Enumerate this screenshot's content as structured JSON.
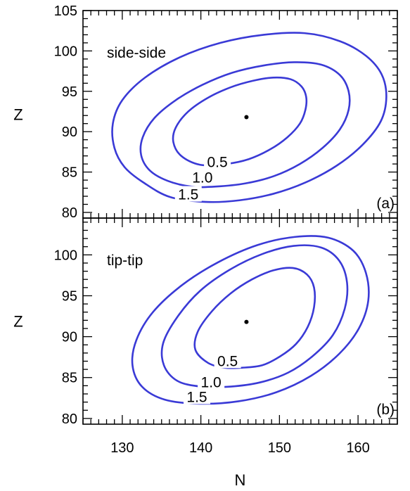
{
  "chart_data": {
    "type": "contour",
    "shared_xaxis": {
      "label": "N",
      "xlim": [
        125,
        165
      ],
      "ticks": [
        130,
        140,
        150,
        160
      ],
      "tick_labels": [
        "130",
        "140",
        "150",
        "160"
      ]
    },
    "panels": [
      {
        "id": "a",
        "annotation": "side-side",
        "panel_label": "(a)",
        "ylabel": "Z",
        "ylim": [
          79.3,
          105
        ],
        "yticks": [
          80,
          85,
          90,
          95,
          100,
          105
        ],
        "ytick_labels": [
          "80",
          "85",
          "90",
          "95",
          "100",
          "105"
        ],
        "center": {
          "x": 145.8,
          "y": 91.8
        },
        "contours": [
          {
            "level": "0.5",
            "label": "0.5",
            "label_at": {
              "x": 142.1,
              "y": 86.3
            },
            "points": [
              [
                139.9,
                85.9
              ],
              [
                143.2,
                86.0
              ],
              [
                146.1,
                86.6
              ],
              [
                148.8,
                87.8
              ],
              [
                151.0,
                89.3
              ],
              [
                152.6,
                91.0
              ],
              [
                153.3,
                92.7
              ],
              [
                153.4,
                94.3
              ],
              [
                152.8,
                95.6
              ],
              [
                151.4,
                96.5
              ],
              [
                149.2,
                96.7
              ],
              [
                146.6,
                96.3
              ],
              [
                143.8,
                95.5
              ],
              [
                140.9,
                94.2
              ],
              [
                138.4,
                92.5
              ],
              [
                136.8,
                90.5
              ],
              [
                136.5,
                88.7
              ],
              [
                137.5,
                87.0
              ],
              [
                139.9,
                85.9
              ]
            ]
          },
          {
            "level": "1.0",
            "label": "1.0",
            "label_at": {
              "x": 140.2,
              "y": 84.4
            },
            "points": [
              [
                141.9,
                83.2
              ],
              [
                145.7,
                83.6
              ],
              [
                149.3,
                84.5
              ],
              [
                152.6,
                86.0
              ],
              [
                155.5,
                88.0
              ],
              [
                157.7,
                90.3
              ],
              [
                158.8,
                92.7
              ],
              [
                158.8,
                95.0
              ],
              [
                157.7,
                97.0
              ],
              [
                155.3,
                98.3
              ],
              [
                151.9,
                98.6
              ],
              [
                148.0,
                98.2
              ],
              [
                144.0,
                97.3
              ],
              [
                140.2,
                95.8
              ],
              [
                136.8,
                93.9
              ],
              [
                134.1,
                91.7
              ],
              [
                132.6,
                89.3
              ],
              [
                132.4,
                87.1
              ],
              [
                133.5,
                85.2
              ],
              [
                135.8,
                83.9
              ],
              [
                138.8,
                83.2
              ],
              [
                141.9,
                83.2
              ]
            ]
          },
          {
            "level": "1.5",
            "label": "1.5",
            "label_at": {
              "x": 138.4,
              "y": 82.3
            },
            "points": [
              [
                140.7,
                81.3
              ],
              [
                144.9,
                81.5
              ],
              [
                149.2,
                82.3
              ],
              [
                153.3,
                83.7
              ],
              [
                157.3,
                85.8
              ],
              [
                160.6,
                88.4
              ],
              [
                162.9,
                91.3
              ],
              [
                163.6,
                94.3
              ],
              [
                163.0,
                97.1
              ],
              [
                161.0,
                99.4
              ],
              [
                157.7,
                101.2
              ],
              [
                153.2,
                102.2
              ],
              [
                148.0,
                102.0
              ],
              [
                142.5,
                101.0
              ],
              [
                137.3,
                99.2
              ],
              [
                132.9,
                96.7
              ],
              [
                130.0,
                93.9
              ],
              [
                128.8,
                91.0
              ],
              [
                129.0,
                88.0
              ],
              [
                130.3,
                85.6
              ],
              [
                132.7,
                83.7
              ],
              [
                136.1,
                81.9
              ],
              [
                140.7,
                81.3
              ]
            ]
          }
        ]
      },
      {
        "id": "b",
        "annotation": "tip-tip",
        "panel_label": "(b)",
        "ylabel": "Z",
        "ylim": [
          79.3,
          104.5
        ],
        "yticks": [
          80,
          85,
          90,
          95,
          100
        ],
        "ytick_labels": [
          "80",
          "85",
          "90",
          "95",
          "100"
        ],
        "center": {
          "x": 145.8,
          "y": 91.8
        },
        "contours": [
          {
            "level": "0.5",
            "label": "0.5",
            "label_at": {
              "x": 143.4,
              "y": 87.1
            },
            "points": [
              [
                145.2,
                86.2
              ],
              [
                147.8,
                86.5
              ],
              [
                150.1,
                87.6
              ],
              [
                152.1,
                89.1
              ],
              [
                153.6,
                91.2
              ],
              [
                154.4,
                93.6
              ],
              [
                154.4,
                96.0
              ],
              [
                153.5,
                97.6
              ],
              [
                151.7,
                98.4
              ],
              [
                149.2,
                98.1
              ],
              [
                146.5,
                97.0
              ],
              [
                143.8,
                95.3
              ],
              [
                141.4,
                93.1
              ],
              [
                139.6,
                90.6
              ],
              [
                139.3,
                88.4
              ],
              [
                140.9,
                86.8
              ],
              [
                143.0,
                86.2
              ],
              [
                145.2,
                86.2
              ]
            ]
          },
          {
            "level": "1.0",
            "label": "1.0",
            "label_at": {
              "x": 141.3,
              "y": 84.5
            },
            "points": [
              [
                143.8,
                83.9
              ],
              [
                147.5,
                84.4
              ],
              [
                151.1,
                85.6
              ],
              [
                154.2,
                87.6
              ],
              [
                156.8,
                90.2
              ],
              [
                158.3,
                93.4
              ],
              [
                158.6,
                96.6
              ],
              [
                157.6,
                99.3
              ],
              [
                155.3,
                100.9
              ],
              [
                151.8,
                101.1
              ],
              [
                147.8,
                100.1
              ],
              [
                143.7,
                98.2
              ],
              [
                139.9,
                95.6
              ],
              [
                137.0,
                92.4
              ],
              [
                135.2,
                89.2
              ],
              [
                135.3,
                86.5
              ],
              [
                137.0,
                84.6
              ],
              [
                140.0,
                83.9
              ],
              [
                143.8,
                83.9
              ]
            ]
          },
          {
            "level": "1.5",
            "label": "1.5",
            "label_at": {
              "x": 139.5,
              "y": 82.7
            },
            "points": [
              [
                139.9,
                81.8
              ],
              [
                144.8,
                82.1
              ],
              [
                149.6,
                83.2
              ],
              [
                154.0,
                85.2
              ],
              [
                157.6,
                87.9
              ],
              [
                160.1,
                91.0
              ],
              [
                161.3,
                94.4
              ],
              [
                161.0,
                97.8
              ],
              [
                159.4,
                100.5
              ],
              [
                156.2,
                102.1
              ],
              [
                152.0,
                102.2
              ],
              [
                147.2,
                101.2
              ],
              [
                142.2,
                99.1
              ],
              [
                137.6,
                96.3
              ],
              [
                133.9,
                93.0
              ],
              [
                131.8,
                89.6
              ],
              [
                131.3,
                86.5
              ],
              [
                132.5,
                83.9
              ],
              [
                135.4,
                82.3
              ],
              [
                139.9,
                81.8
              ]
            ]
          }
        ]
      }
    ]
  },
  "colors": {
    "contour": "#3a3ad6",
    "axis": "#000000"
  }
}
